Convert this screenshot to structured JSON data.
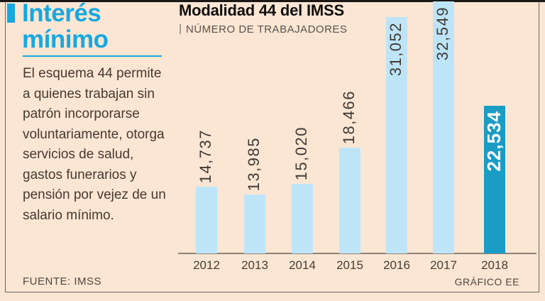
{
  "panel": {
    "title": "Interés mínimo",
    "description": "El esquema 44 permite a quienes trabajan sin patrón incorporarse voluntariamente, otorga servicios de salud, gastos funerarios y pensión por vejez de un salario mínimo.",
    "source": "FUENTE: IMSS",
    "credit": "GRÁFICO EE"
  },
  "chart_data": {
    "type": "bar",
    "title": "Modalidad 44 del IMSS",
    "subtitle": "NÚMERO DE TRABAJADORES",
    "categories": [
      "2012",
      "2013",
      "2014",
      "2015",
      "2016",
      "2017",
      "2018"
    ],
    "values": [
      14737,
      13985,
      15020,
      18466,
      31052,
      32549,
      22534
    ],
    "value_labels": [
      "14,737",
      "13,985",
      "15,020",
      "18,466",
      "31,052",
      "32,549",
      "22,534"
    ],
    "highlight_index": 6,
    "label_inside": [
      false,
      false,
      false,
      false,
      true,
      true,
      true
    ],
    "bar_color": "#bee5f7",
    "highlight_color": "#1a9cc5",
    "value_label_color": "#403a35",
    "highlight_label_color": "#ffffff",
    "xlabel": "",
    "ylabel": "",
    "grid": false,
    "legend": "none"
  },
  "colors": {
    "background": "#fbe6d4",
    "accent_cyan": "#17a8e0",
    "body_text": "#46392f",
    "frame_border": "#6f675e",
    "axis_line": "#8b8279",
    "top_rule": "#1a1715"
  }
}
